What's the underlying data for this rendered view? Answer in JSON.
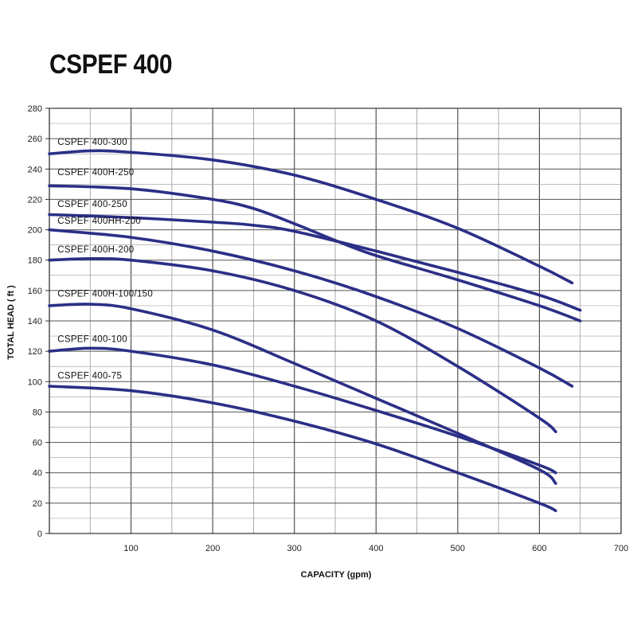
{
  "title": "CSPEF 400",
  "chart_data": {
    "type": "line",
    "title": "CSPEF 400",
    "xlabel": "CAPACITY (gpm)",
    "ylabel": "TOTAL HEAD ( ft )",
    "xlim": [
      0,
      700
    ],
    "ylim": [
      0,
      280
    ],
    "x_major_ticks": [
      0,
      100,
      200,
      300,
      400,
      500,
      600,
      700
    ],
    "x_minor_step": 50,
    "y_ticks": [
      0,
      20,
      40,
      60,
      80,
      100,
      120,
      140,
      160,
      180,
      200,
      220,
      240,
      260,
      280
    ],
    "grid": true,
    "line_color": "#2b2f86",
    "series": [
      {
        "name": "CSPEF 400-300",
        "points": [
          [
            0,
            250
          ],
          [
            50,
            252
          ],
          [
            100,
            251
          ],
          [
            200,
            246
          ],
          [
            300,
            236
          ],
          [
            400,
            220
          ],
          [
            500,
            201
          ],
          [
            600,
            176
          ],
          [
            640,
            165
          ]
        ]
      },
      {
        "name": "CSPEF 400H-250",
        "points": [
          [
            0,
            229
          ],
          [
            100,
            227
          ],
          [
            200,
            220
          ],
          [
            250,
            214
          ],
          [
            300,
            204
          ],
          [
            350,
            193
          ],
          [
            400,
            183
          ],
          [
            500,
            167
          ],
          [
            600,
            150
          ],
          [
            650,
            140
          ]
        ]
      },
      {
        "name": "CSPEF 400-250",
        "points": [
          [
            0,
            210
          ],
          [
            100,
            208
          ],
          [
            200,
            205
          ],
          [
            250,
            203
          ],
          [
            300,
            199
          ],
          [
            400,
            186
          ],
          [
            500,
            172
          ],
          [
            600,
            157
          ],
          [
            650,
            147
          ]
        ]
      },
      {
        "name": "CSPEF 400HH-200",
        "points": [
          [
            0,
            200
          ],
          [
            100,
            195
          ],
          [
            200,
            186
          ],
          [
            300,
            173
          ],
          [
            400,
            156
          ],
          [
            500,
            135
          ],
          [
            600,
            109
          ],
          [
            640,
            97
          ]
        ]
      },
      {
        "name": "CSPEF 400H-200",
        "points": [
          [
            0,
            180
          ],
          [
            50,
            181
          ],
          [
            100,
            180
          ],
          [
            200,
            173
          ],
          [
            300,
            160
          ],
          [
            400,
            140
          ],
          [
            500,
            110
          ],
          [
            600,
            76
          ],
          [
            620,
            67
          ]
        ]
      },
      {
        "name": "CSPEF 400H-100/150",
        "points": [
          [
            0,
            150
          ],
          [
            50,
            151
          ],
          [
            100,
            148
          ],
          [
            200,
            134
          ],
          [
            300,
            112
          ],
          [
            400,
            89
          ],
          [
            500,
            66
          ],
          [
            600,
            42
          ],
          [
            620,
            33
          ]
        ]
      },
      {
        "name": "CSPEF 400-100",
        "points": [
          [
            0,
            120
          ],
          [
            50,
            122
          ],
          [
            100,
            120
          ],
          [
            200,
            111
          ],
          [
            300,
            97
          ],
          [
            400,
            81
          ],
          [
            500,
            64
          ],
          [
            600,
            45
          ],
          [
            620,
            40
          ]
        ]
      },
      {
        "name": "CSPEF 400-75",
        "points": [
          [
            0,
            97
          ],
          [
            100,
            94
          ],
          [
            200,
            86
          ],
          [
            300,
            74
          ],
          [
            400,
            59
          ],
          [
            500,
            40
          ],
          [
            600,
            20
          ],
          [
            620,
            15
          ]
        ]
      }
    ],
    "label_anchors": [
      {
        "name": "CSPEF 400-300",
        "x": 10,
        "y": 256
      },
      {
        "name": "CSPEF 400H-250",
        "x": 10,
        "y": 236
      },
      {
        "name": "CSPEF 400-250",
        "x": 10,
        "y": 215
      },
      {
        "name": "CSPEF 400HH-200",
        "x": 10,
        "y": 204
      },
      {
        "name": "CSPEF 400H-200",
        "x": 10,
        "y": 185
      },
      {
        "name": "CSPEF 400H-100/150",
        "x": 10,
        "y": 156
      },
      {
        "name": "CSPEF 400-100",
        "x": 10,
        "y": 126
      },
      {
        "name": "CSPEF 400-75",
        "x": 10,
        "y": 102
      }
    ]
  }
}
